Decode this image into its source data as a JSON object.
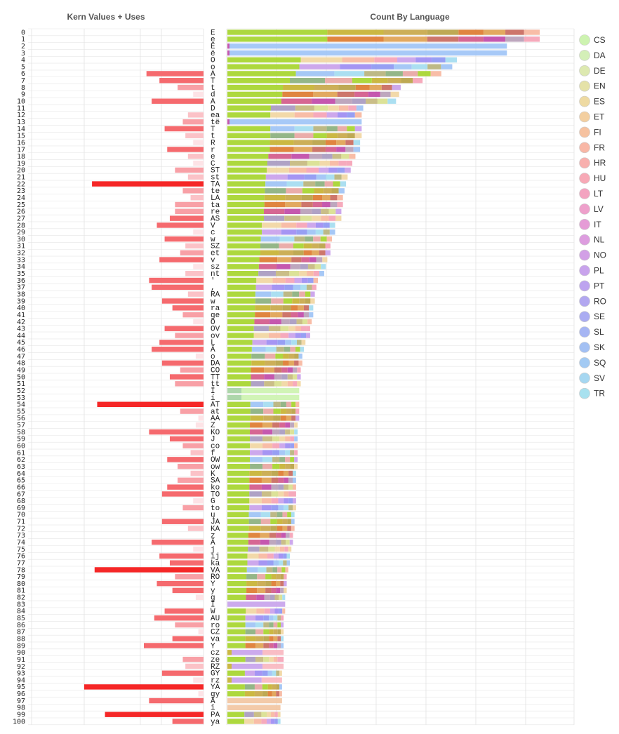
{
  "chart_data": {
    "type": "bar",
    "titles": {
      "left": "Kern Values + Uses",
      "right": "Count By Language"
    },
    "languages": [
      "CS",
      "DA",
      "DE",
      "EN",
      "ES",
      "ET",
      "FI",
      "FR",
      "HR",
      "HU",
      "LT",
      "LV",
      "IT",
      "NL",
      "NO",
      "PL",
      "PT",
      "RO",
      "SE",
      "SL",
      "SK",
      "SQ",
      "SV",
      "TR"
    ],
    "language_colors": [
      "#cdf3b0",
      "#d4efb8",
      "#dde9b0",
      "#e5e2a8",
      "#eedaa2",
      "#f3cfa0",
      "#f6c2a0",
      "#f8b7a6",
      "#f8b0ae",
      "#f7a9b6",
      "#f3a3c0",
      "#eea0cb",
      "#e59cd6",
      "#dd9ddf",
      "#d2a0e6",
      "#c8a3ec",
      "#bda4ef",
      "#b2a7f0",
      "#aaacf2",
      "#a6b5f3",
      "#a3c0f3",
      "#a3caf3",
      "#a6d7f1",
      "#a8e1ef"
    ],
    "left_axis_max": 230,
    "rows": [
      {
        "i": 0,
        "pair": "E",
        "kern": 0,
        "total": 1000,
        "type": "full"
      },
      {
        "i": 1,
        "pair": "e",
        "kern": 0,
        "total": 1000,
        "type": "full"
      },
      {
        "i": 2,
        "pair": "Ë",
        "kern": 0,
        "total": 895,
        "type": "sq"
      },
      {
        "i": 3,
        "pair": "ë",
        "kern": 0,
        "total": 895,
        "type": "sq"
      },
      {
        "i": 4,
        "pair": "O",
        "kern": 0,
        "total": 735,
        "type": "full"
      },
      {
        "i": 5,
        "pair": "o",
        "kern": 0,
        "total": 720,
        "type": "full"
      },
      {
        "i": 6,
        "pair": "A",
        "kern": -110,
        "total": 685,
        "type": "full"
      },
      {
        "i": 7,
        "pair": "T",
        "kern": -85,
        "total": 625,
        "type": "full"
      },
      {
        "i": 8,
        "pair": "t",
        "kern": -50,
        "total": 555,
        "type": "full"
      },
      {
        "i": 9,
        "pair": "d",
        "kern": -20,
        "total": 550,
        "type": "full"
      },
      {
        "i": 10,
        "pair": "A",
        "kern": -100,
        "total": 540,
        "type": "full"
      },
      {
        "i": 11,
        "pair": "D",
        "kern": 0,
        "total": 435,
        "type": "full"
      },
      {
        "i": 12,
        "pair": "ea",
        "kern": -30,
        "total": 430,
        "type": "full"
      },
      {
        "i": 13,
        "pair": "të",
        "kern": -40,
        "total": 430,
        "type": "sq"
      },
      {
        "i": 14,
        "pair": "T",
        "kern": -75,
        "total": 430,
        "type": "full"
      },
      {
        "i": 15,
        "pair": "t",
        "kern": -35,
        "total": 430,
        "type": "full"
      },
      {
        "i": 16,
        "pair": "R",
        "kern": -20,
        "total": 425,
        "type": "full"
      },
      {
        "i": 17,
        "pair": "r",
        "kern": -70,
        "total": 425,
        "type": "full"
      },
      {
        "i": 18,
        "pair": "e",
        "kern": -30,
        "total": 410,
        "type": "full"
      },
      {
        "i": 19,
        "pair": "C",
        "kern": -20,
        "total": 400,
        "type": "full"
      },
      {
        "i": 20,
        "pair": "ST",
        "kern": -55,
        "total": 395,
        "type": "full"
      },
      {
        "i": 21,
        "pair": "st",
        "kern": -30,
        "total": 385,
        "type": "full"
      },
      {
        "i": 22,
        "pair": "TA",
        "kern": -215,
        "total": 380,
        "type": "full"
      },
      {
        "i": 23,
        "pair": "te",
        "kern": -40,
        "total": 375,
        "type": "full"
      },
      {
        "i": 24,
        "pair": "LA",
        "kern": -25,
        "total": 370,
        "type": "full"
      },
      {
        "i": 25,
        "pair": "ta",
        "kern": -55,
        "total": 370,
        "type": "full"
      },
      {
        "i": 26,
        "pair": "re",
        "kern": -55,
        "total": 365,
        "type": "full"
      },
      {
        "i": 27,
        "pair": "AS",
        "kern": -65,
        "total": 365,
        "type": "full"
      },
      {
        "i": 28,
        "pair": "V",
        "kern": -90,
        "total": 345,
        "type": "full"
      },
      {
        "i": 29,
        "pair": "c",
        "kern": -20,
        "total": 345,
        "type": "full"
      },
      {
        "i": 30,
        "pair": "w",
        "kern": -75,
        "total": 335,
        "type": "full"
      },
      {
        "i": 31,
        "pair": "SZ",
        "kern": -35,
        "total": 330,
        "type": "full"
      },
      {
        "i": 32,
        "pair": "et",
        "kern": -45,
        "total": 330,
        "type": "full"
      },
      {
        "i": 33,
        "pair": "v",
        "kern": -85,
        "total": 320,
        "type": "full"
      },
      {
        "i": 34,
        "pair": "sz",
        "kern": -20,
        "total": 315,
        "type": "full"
      },
      {
        "i": 35,
        "pair": "nt",
        "kern": -35,
        "total": 310,
        "type": "full"
      },
      {
        "i": 36,
        "pair": "'",
        "kern": -105,
        "total": 290,
        "type": "full"
      },
      {
        "i": 37,
        "pair": ",",
        "kern": -100,
        "total": 285,
        "type": "full"
      },
      {
        "i": 38,
        "pair": "RA",
        "kern": -30,
        "total": 280,
        "type": "full"
      },
      {
        "i": 39,
        "pair": "w",
        "kern": -80,
        "total": 280,
        "type": "full"
      },
      {
        "i": 40,
        "pair": "ra",
        "kern": -60,
        "total": 275,
        "type": "full"
      },
      {
        "i": 41,
        "pair": "ge",
        "kern": -40,
        "total": 275,
        "type": "full"
      },
      {
        "i": 42,
        "pair": "O",
        "kern": -20,
        "total": 270,
        "type": "full"
      },
      {
        "i": 43,
        "pair": "OV",
        "kern": -75,
        "total": 265,
        "type": "full"
      },
      {
        "i": 44,
        "pair": "ov",
        "kern": -55,
        "total": 265,
        "type": "full"
      },
      {
        "i": 45,
        "pair": "L",
        "kern": -85,
        "total": 250,
        "type": "full"
      },
      {
        "i": 46,
        "pair": "Ä",
        "kern": -100,
        "total": 245,
        "type": "full"
      },
      {
        "i": 47,
        "pair": "o",
        "kern": -15,
        "total": 240,
        "type": "full"
      },
      {
        "i": 48,
        "pair": "DA",
        "kern": -80,
        "total": 240,
        "type": "full"
      },
      {
        "i": 49,
        "pair": "CO",
        "kern": -45,
        "total": 235,
        "type": "full"
      },
      {
        "i": 50,
        "pair": "TT",
        "kern": -65,
        "total": 235,
        "type": "full"
      },
      {
        "i": 51,
        "pair": "tt",
        "kern": -55,
        "total": 235,
        "type": "full"
      },
      {
        "i": 52,
        "pair": "Í",
        "kern": 0,
        "total": 230,
        "type": "cs"
      },
      {
        "i": 53,
        "pair": "í",
        "kern": 0,
        "total": 230,
        "type": "cs"
      },
      {
        "i": 54,
        "pair": "AT",
        "kern": -205,
        "total": 230,
        "type": "full"
      },
      {
        "i": 55,
        "pair": "at",
        "kern": -45,
        "total": 230,
        "type": "full"
      },
      {
        "i": 56,
        "pair": "AA",
        "kern": -10,
        "total": 230,
        "type": "full"
      },
      {
        "i": 57,
        "pair": "Z",
        "kern": -15,
        "total": 225,
        "type": "full"
      },
      {
        "i": 58,
        "pair": "KO",
        "kern": -105,
        "total": 225,
        "type": "full"
      },
      {
        "i": 59,
        "pair": "J",
        "kern": -65,
        "total": 225,
        "type": "full"
      },
      {
        "i": 60,
        "pair": "co",
        "kern": -40,
        "total": 225,
        "type": "full"
      },
      {
        "i": 61,
        "pair": "f",
        "kern": -25,
        "total": 225,
        "type": "full"
      },
      {
        "i": 62,
        "pair": "OW",
        "kern": -70,
        "total": 225,
        "type": "full"
      },
      {
        "i": 63,
        "pair": "ow",
        "kern": -50,
        "total": 225,
        "type": "full"
      },
      {
        "i": 64,
        "pair": "K",
        "kern": -25,
        "total": 220,
        "type": "full"
      },
      {
        "i": 65,
        "pair": "SA",
        "kern": -50,
        "total": 220,
        "type": "full"
      },
      {
        "i": 66,
        "pair": "ko",
        "kern": -70,
        "total": 220,
        "type": "full"
      },
      {
        "i": 67,
        "pair": "TO",
        "kern": -80,
        "total": 220,
        "type": "full"
      },
      {
        "i": 68,
        "pair": "G",
        "kern": -20,
        "total": 220,
        "type": "full"
      },
      {
        "i": 69,
        "pair": "to",
        "kern": -40,
        "total": 220,
        "type": "full"
      },
      {
        "i": 70,
        "pair": "ų",
        "kern": 0,
        "total": 215,
        "type": "full"
      },
      {
        "i": 71,
        "pair": "JA",
        "kern": -80,
        "total": 215,
        "type": "full"
      },
      {
        "i": 72,
        "pair": "KA",
        "kern": -30,
        "total": 215,
        "type": "full"
      },
      {
        "i": 73,
        "pair": "z",
        "kern": 0,
        "total": 210,
        "type": "full"
      },
      {
        "i": 74,
        "pair": "Ä",
        "kern": -100,
        "total": 210,
        "type": "full"
      },
      {
        "i": 75,
        "pair": "j",
        "kern": -20,
        "total": 205,
        "type": "full"
      },
      {
        "i": 76,
        "pair": "ij",
        "kern": -85,
        "total": 200,
        "type": "full"
      },
      {
        "i": 77,
        "pair": "ka",
        "kern": -65,
        "total": 200,
        "type": "full"
      },
      {
        "i": 78,
        "pair": "VA",
        "kern": -210,
        "total": 195,
        "type": "full"
      },
      {
        "i": 79,
        "pair": "RO",
        "kern": -55,
        "total": 190,
        "type": "full"
      },
      {
        "i": 80,
        "pair": "Y",
        "kern": -90,
        "total": 190,
        "type": "full"
      },
      {
        "i": 81,
        "pair": "y",
        "kern": -60,
        "total": 190,
        "type": "full"
      },
      {
        "i": 82,
        "pair": "g",
        "kern": -15,
        "total": 185,
        "type": "full"
      },
      {
        "i": 83,
        "pair": "Ī",
        "kern": 0,
        "total": 185,
        "type": "lv"
      },
      {
        "i": 84,
        "pair": "W",
        "kern": -75,
        "total": 185,
        "type": "full"
      },
      {
        "i": 85,
        "pair": "AU",
        "kern": -95,
        "total": 180,
        "type": "full"
      },
      {
        "i": 86,
        "pair": "ro",
        "kern": -55,
        "total": 180,
        "type": "full"
      },
      {
        "i": 87,
        "pair": "CZ",
        "kern": -10,
        "total": 180,
        "type": "full"
      },
      {
        "i": 88,
        "pair": "va",
        "kern": -60,
        "total": 180,
        "type": "full"
      },
      {
        "i": 89,
        "pair": "Y",
        "kern": -115,
        "total": 180,
        "type": "full"
      },
      {
        "i": 90,
        "pair": "cz",
        "kern": 0,
        "total": 180,
        "type": "pl"
      },
      {
        "i": 91,
        "pair": "ze",
        "kern": -40,
        "total": 180,
        "type": "full"
      },
      {
        "i": 92,
        "pair": "RZ",
        "kern": -35,
        "total": 180,
        "type": "pl"
      },
      {
        "i": 93,
        "pair": "GY",
        "kern": -80,
        "total": 175,
        "type": "full"
      },
      {
        "i": 94,
        "pair": "rz",
        "kern": -20,
        "total": 175,
        "type": "pl"
      },
      {
        "i": 95,
        "pair": "YA",
        "kern": -230,
        "total": 175,
        "type": "full"
      },
      {
        "i": 96,
        "pair": "gy",
        "kern": -10,
        "total": 175,
        "type": "full"
      },
      {
        "i": 97,
        "pair": "Â",
        "kern": -105,
        "total": 175,
        "type": "ro"
      },
      {
        "i": 98,
        "pair": "î",
        "kern": 0,
        "total": 170,
        "type": "ro"
      },
      {
        "i": 99,
        "pair": "PA",
        "kern": -190,
        "total": 170,
        "type": "full"
      },
      {
        "i": 100,
        "pair": "ya",
        "kern": -60,
        "total": 170,
        "type": "full"
      }
    ]
  }
}
